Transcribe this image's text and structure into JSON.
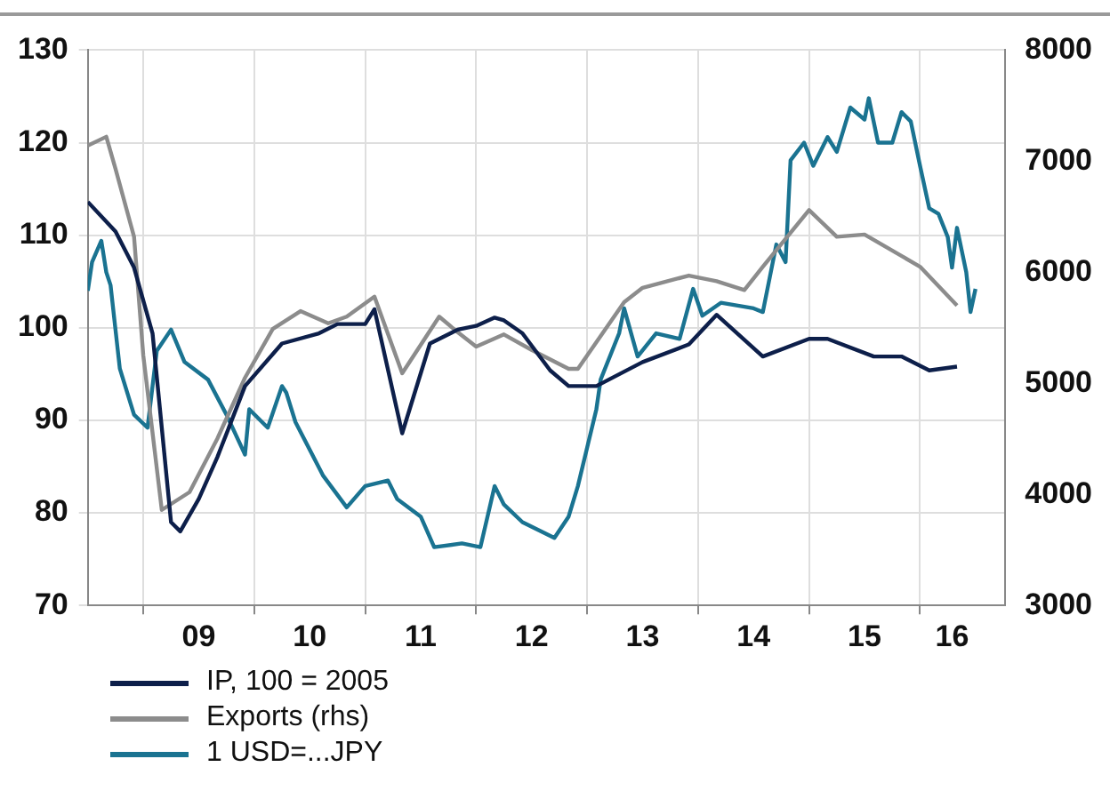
{
  "chart_data": {
    "type": "line",
    "xlim": [
      "2008-07-01",
      "2016-10-08"
    ],
    "xticks": [
      {
        "value": "2009-01-01",
        "label": null
      },
      {
        "value": "2009-07-01",
        "label": "09"
      },
      {
        "value": "2010-01-01",
        "label": null
      },
      {
        "value": "2010-07-01",
        "label": "10"
      },
      {
        "value": "2011-01-01",
        "label": null
      },
      {
        "value": "2011-07-01",
        "label": "11"
      },
      {
        "value": "2012-01-01",
        "label": null
      },
      {
        "value": "2012-07-01",
        "label": "12"
      },
      {
        "value": "2013-01-01",
        "label": null
      },
      {
        "value": "2013-07-01",
        "label": "13"
      },
      {
        "value": "2014-01-01",
        "label": null
      },
      {
        "value": "2014-07-01",
        "label": "14"
      },
      {
        "value": "2015-01-01",
        "label": null
      },
      {
        "value": "2015-07-01",
        "label": "15"
      },
      {
        "value": "2016-01-01",
        "label": null
      },
      {
        "value": "2016-04-15",
        "label": "16"
      }
    ],
    "ylim": [
      70,
      130
    ],
    "yticks": [
      70,
      80,
      90,
      100,
      110,
      120,
      130
    ],
    "y2lim": [
      3000,
      8000
    ],
    "y2ticks": [
      3000,
      4000,
      5000,
      6000,
      7000,
      8000
    ],
    "grid": true,
    "legend": "bottom left",
    "marker": "none",
    "line_style": "solid",
    "series": [
      {
        "name": "IP, 100 = 2005",
        "color": "#0d1f4a",
        "x": [
          "2008-07",
          "2008-10",
          "2008-12",
          "2009-02",
          "2009-04",
          "2009-05",
          "2009-07",
          "2009-09",
          "2009-12",
          "2010-04",
          "2010-08",
          "2010-10",
          "2011-01",
          "2011-02",
          "2011-05",
          "2011-08",
          "2011-11",
          "2012-01",
          "2012-03",
          "2012-04",
          "2012-06",
          "2012-09",
          "2012-11",
          "2013-02",
          "2013-07",
          "2013-12",
          "2014-03",
          "2014-08",
          "2015-01",
          "2015-03",
          "2015-08",
          "2015-11",
          "2016-02",
          "2016-05"
        ],
        "values": [
          113.6,
          110.4,
          106.5,
          99.4,
          79,
          78,
          81.5,
          86,
          93.7,
          98.3,
          99.4,
          100.4,
          100.4,
          102,
          88.6,
          98.3,
          99.8,
          100.2,
          101.1,
          100.8,
          99.4,
          95.4,
          93.7,
          93.7,
          96.3,
          98.2,
          101.4,
          96.9,
          98.8,
          98.8,
          96.9,
          96.9,
          95.4,
          95.8
        ]
      },
      {
        "name": "Exports (rhs)",
        "color": "#8c8c8c",
        "axis": "y2",
        "x": [
          "2008-07",
          "2008-09",
          "2008-10",
          "2008-12",
          "2009-01",
          "2009-03",
          "2009-06",
          "2009-09",
          "2009-12",
          "2010-03",
          "2010-06",
          "2010-09",
          "2010-11",
          "2011-02",
          "2011-05",
          "2011-09",
          "2011-11",
          "2012-01",
          "2012-04",
          "2012-07",
          "2012-11",
          "2012-12",
          "2013-05",
          "2013-07",
          "2013-12",
          "2014-03",
          "2014-06",
          "2014-08",
          "2015-01",
          "2015-04",
          "2015-07",
          "2016-01",
          "2016-05"
        ],
        "values": [
          7140,
          7220,
          6930,
          6320,
          5250,
          3860,
          4020,
          4500,
          5050,
          5490,
          5650,
          5540,
          5600,
          5780,
          5090,
          5600,
          5460,
          5330,
          5440,
          5300,
          5130,
          5130,
          5730,
          5860,
          5970,
          5920,
          5840,
          6050,
          6560,
          6320,
          6340,
          6050,
          5700
        ]
      },
      {
        "name": "1 USD=...JPY",
        "color": "#1a7391",
        "x": [
          "2008-07-01",
          "2008-07-15",
          "2008-08-15",
          "2008-09-01",
          "2008-09-15",
          "2008-10-15",
          "2008-12-01",
          "2009-01-15",
          "2009-02-15",
          "2009-04-01",
          "2009-05-15",
          "2009-08-01",
          "2009-10-01",
          "2009-12-01",
          "2009-12-15",
          "2010-02-15",
          "2010-04-01",
          "2010-04-15",
          "2010-05-15",
          "2010-08-15",
          "2010-11-01",
          "2011-01-01",
          "2011-03-15",
          "2011-04-15",
          "2011-07-01",
          "2011-08-15",
          "2011-11-15",
          "2012-01-15",
          "2012-03-01",
          "2012-04-01",
          "2012-06-01",
          "2012-09-15",
          "2012-11-01",
          "2012-12-01",
          "2013-02-01",
          "2013-02-15",
          "2013-04-15",
          "2013-05-01",
          "2013-06-15",
          "2013-08-15",
          "2013-11-01",
          "2013-12-15",
          "2014-01-15",
          "2014-03-15",
          "2014-07-01",
          "2014-08-01",
          "2014-09-15",
          "2014-10-15",
          "2014-11-01",
          "2014-12-15",
          "2015-01-15",
          "2015-03-01",
          "2015-04-01",
          "2015-05-15",
          "2015-07-01",
          "2015-07-15",
          "2015-08-15",
          "2015-10-01",
          "2015-11-01",
          "2015-12-01",
          "2016-01-01",
          "2016-02-01",
          "2016-03-01",
          "2016-04-01",
          "2016-04-15",
          "2016-05-01",
          "2016-06-01",
          "2016-06-15",
          "2016-07-01"
        ],
        "values": [
          104,
          107.1,
          109.4,
          106,
          104.6,
          95.6,
          90.6,
          89.2,
          97.5,
          99.8,
          96.3,
          94.4,
          90.6,
          86.3,
          91.2,
          89.2,
          93.7,
          93,
          89.8,
          84,
          80.6,
          82.9,
          83.5,
          81.5,
          79.6,
          76.3,
          76.7,
          76.3,
          82.9,
          80.9,
          79,
          77.3,
          79.6,
          82.9,
          91.2,
          94.4,
          99.4,
          102.1,
          96.9,
          99.4,
          98.8,
          104.2,
          101.3,
          102.7,
          102.1,
          101.7,
          109,
          107.1,
          118.1,
          120,
          117.5,
          120.6,
          119,
          123.8,
          122.5,
          124.8,
          120,
          120,
          123.3,
          122.3,
          117.5,
          112.9,
          112.3,
          109.8,
          106.5,
          110.8,
          106,
          101.7,
          104.2
        ]
      }
    ]
  }
}
